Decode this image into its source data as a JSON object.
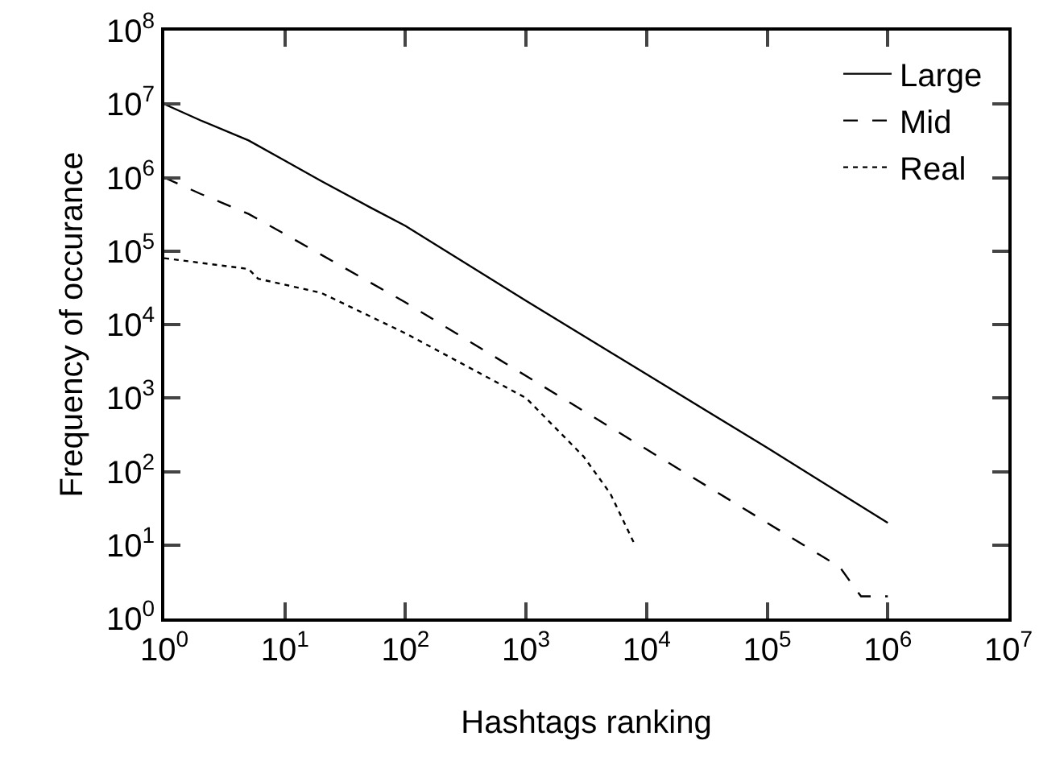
{
  "chart_data": {
    "type": "line",
    "xlabel": "Hashtags ranking",
    "ylabel": "Frequency of occurance",
    "log": "xy",
    "grid": false,
    "legend": "top right",
    "marker": "none",
    "xlim": [
      1,
      10000000
    ],
    "ylim": [
      1,
      100000000
    ],
    "xticks": [
      {
        "value": 1,
        "label": "10$^{0}$"
      },
      {
        "value": 10,
        "label": "10$^{1}$"
      },
      {
        "value": 100,
        "label": "10$^{2}$"
      },
      {
        "value": 1000,
        "label": "10$^{3}$"
      },
      {
        "value": 10000,
        "label": "10$^{4}$"
      },
      {
        "value": 100000,
        "label": "10$^{5}$"
      },
      {
        "value": 1000000,
        "label": "10$^{6}$"
      },
      {
        "value": 10000000,
        "label": "10$^{7}$"
      }
    ],
    "yticks": [
      {
        "value": 1,
        "label": "10$^{0}$"
      },
      {
        "value": 10,
        "label": "10$^{1}$"
      },
      {
        "value": 100,
        "label": "10$^{2}$"
      },
      {
        "value": 1000,
        "label": "10$^{3}$"
      },
      {
        "value": 10000,
        "label": "10$^{4}$"
      },
      {
        "value": 100000,
        "label": "10$^{5}$"
      },
      {
        "value": 1000000,
        "label": "10$^{6}$"
      },
      {
        "value": 10000000,
        "label": "10$^{7}$"
      },
      {
        "value": 100000000,
        "label": "10$^{8}$"
      }
    ],
    "series": [
      {
        "name": "Large",
        "color": "#000000",
        "line_style": "solid",
        "x": [
          1,
          2,
          5,
          10,
          20,
          50,
          100,
          1000,
          10000,
          100000,
          1000000
        ],
        "values": [
          10000000,
          6000000,
          3200000,
          1700000,
          900000,
          400000,
          220000,
          21000,
          2100,
          210,
          20
        ]
      },
      {
        "name": "Mid",
        "color": "#000000",
        "line_style": "dashed",
        "x": [
          1,
          2,
          5,
          10,
          100,
          1000,
          10000,
          100000,
          200000,
          400000,
          500000,
          600000,
          1000000
        ],
        "values": [
          1000000,
          600000,
          320000,
          170000,
          20000,
          2000,
          200,
          20,
          10,
          5,
          3,
          2,
          2
        ]
      },
      {
        "name": "Real",
        "color": "#000000",
        "line_style": "dotted",
        "x": [
          1,
          5,
          6,
          20,
          100,
          1000,
          3000,
          5000,
          8000
        ],
        "values": [
          80000,
          57000,
          42000,
          27000,
          7600,
          1000,
          160,
          50,
          10
        ]
      }
    ]
  }
}
